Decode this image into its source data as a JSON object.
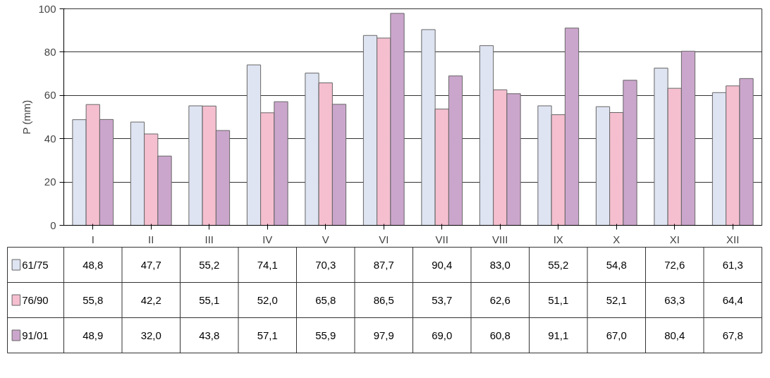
{
  "chart_data": {
    "type": "bar",
    "ylabel": "P (mm)",
    "categories": [
      "I",
      "II",
      "III",
      "IV",
      "V",
      "VI",
      "VII",
      "VIII",
      "IX",
      "X",
      "XI",
      "XII"
    ],
    "ylim": [
      0,
      100
    ],
    "yticks": [
      0,
      20,
      40,
      60,
      80,
      100
    ],
    "grid": "y",
    "legend": "bottom",
    "series": [
      {
        "name": "61/75",
        "color": "#dfe4f2",
        "values": [
          48.8,
          47.7,
          55.2,
          74.1,
          70.3,
          87.7,
          90.4,
          83.0,
          55.2,
          54.8,
          72.6,
          61.3
        ],
        "value_labels": [
          "48,8",
          "47,7",
          "55,2",
          "74,1",
          "70,3",
          "87,7",
          "90,4",
          "83,0",
          "55,2",
          "54,8",
          "72,6",
          "61,3"
        ]
      },
      {
        "name": "76/90",
        "color": "#f5bfd0",
        "values": [
          55.8,
          42.2,
          55.1,
          52.0,
          65.8,
          86.5,
          53.7,
          62.6,
          51.1,
          52.1,
          63.3,
          64.4
        ],
        "value_labels": [
          "55,8",
          "42,2",
          "55,1",
          "52,0",
          "65,8",
          "86,5",
          "53,7",
          "62,6",
          "51,1",
          "52,1",
          "63,3",
          "64,4"
        ]
      },
      {
        "name": "91/01",
        "color": "#cba6cc",
        "values": [
          48.9,
          32.0,
          43.8,
          57.1,
          55.9,
          97.9,
          69.0,
          60.8,
          91.1,
          67.0,
          80.4,
          67.8
        ],
        "value_labels": [
          "48,9",
          "32,0",
          "43,8",
          "57,1",
          "55,9",
          "97,9",
          "69,0",
          "60,8",
          "91,1",
          "67,0",
          "80,4",
          "67,8"
        ]
      }
    ]
  }
}
